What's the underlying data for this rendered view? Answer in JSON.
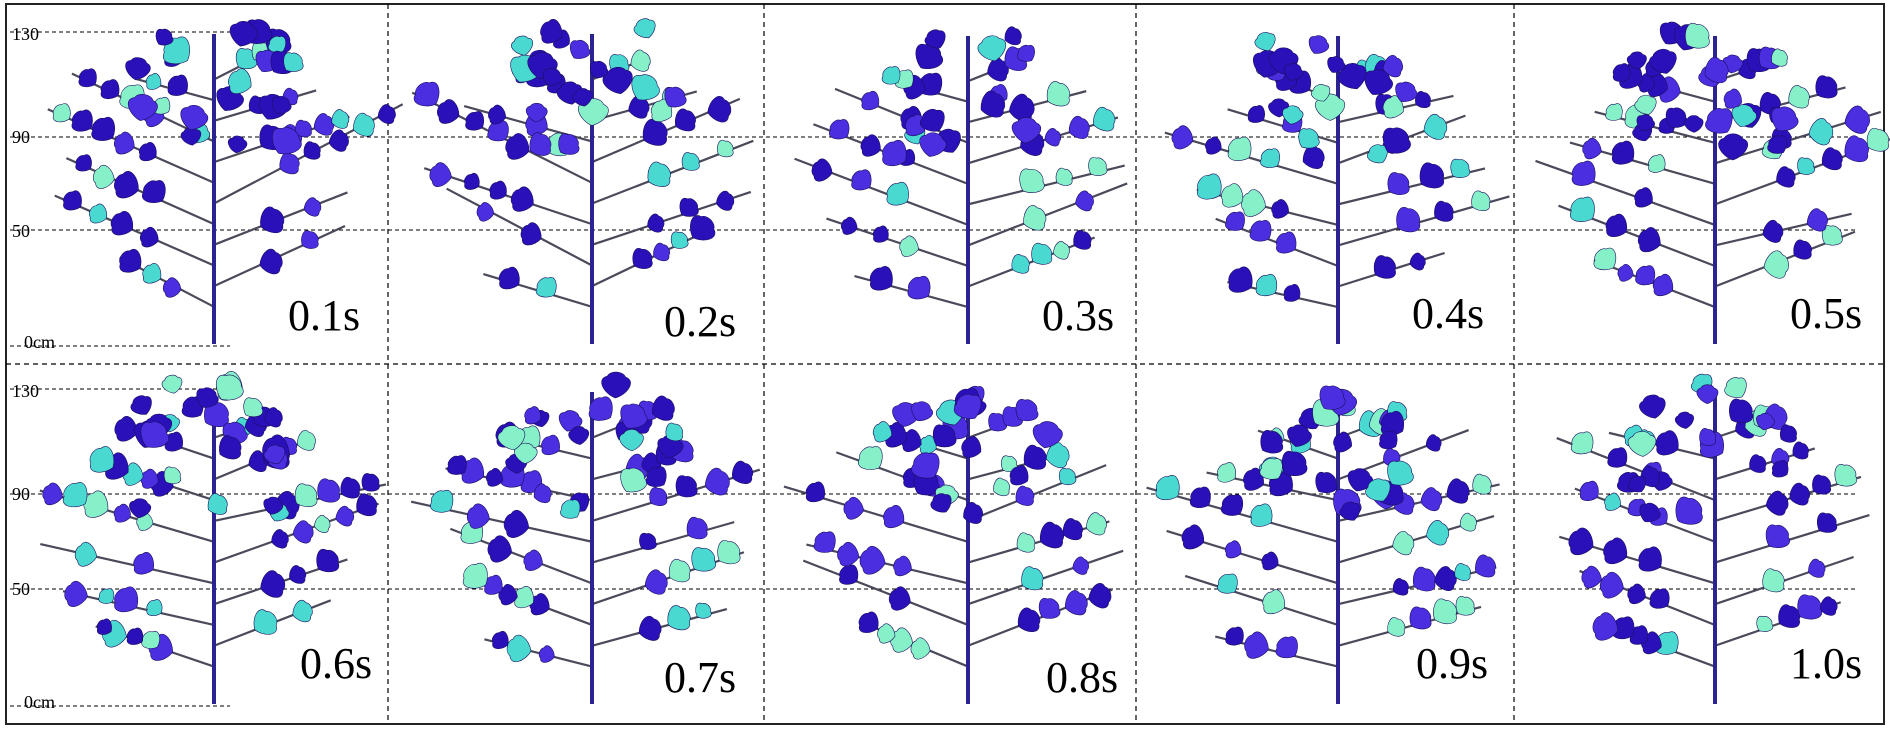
{
  "y_axis": {
    "unit_label": "0cm",
    "tick_labels": [
      "130",
      "90",
      "50"
    ]
  },
  "panels": [
    {
      "time_label": "0.1s"
    },
    {
      "time_label": "0.2s"
    },
    {
      "time_label": "0.3s"
    },
    {
      "time_label": "0.4s"
    },
    {
      "time_label": "0.5s"
    },
    {
      "time_label": "0.6s"
    },
    {
      "time_label": "0.7s"
    },
    {
      "time_label": "0.8s"
    },
    {
      "time_label": "0.9s"
    },
    {
      "time_label": "1.0s"
    }
  ],
  "colors": {
    "stem": "#2b2390",
    "branch": "#4a4a5a",
    "leaf_dark": "#2a10b8",
    "leaf_mid": "#4a2ee0",
    "leaf_cyan": "#49d9d0",
    "leaf_light": "#86f0c8",
    "grid": "#000000"
  }
}
